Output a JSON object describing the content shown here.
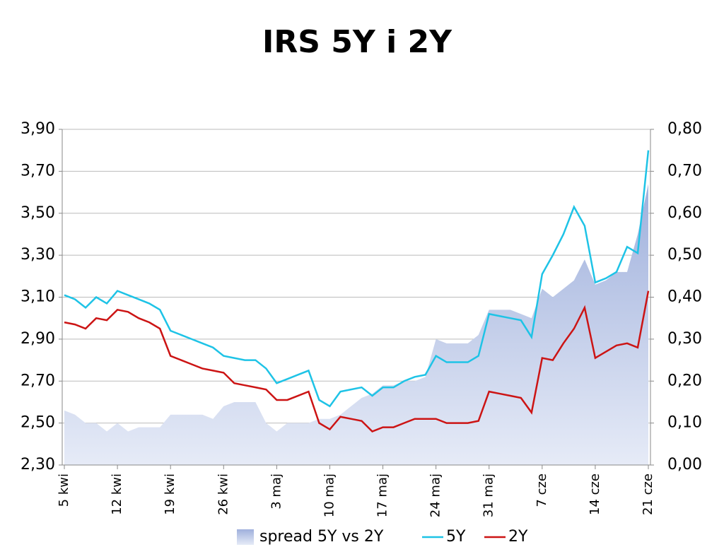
{
  "chart_data": {
    "type": "line",
    "title": "IRS 5Y i 2Y",
    "categories": [
      "5 kwi",
      null,
      null,
      null,
      null,
      "12 kwi",
      null,
      null,
      null,
      null,
      "19 kwi",
      null,
      null,
      null,
      null,
      "26 kwi",
      null,
      null,
      null,
      null,
      "3 maj",
      null,
      null,
      null,
      null,
      "10 maj",
      null,
      null,
      null,
      null,
      "17 maj",
      null,
      null,
      null,
      null,
      "24 maj",
      null,
      null,
      null,
      null,
      "31 maj",
      null,
      null,
      null,
      null,
      "7 cze",
      null,
      null,
      null,
      null,
      "14 cze",
      null,
      null,
      null,
      null,
      "21 cze"
    ],
    "series": [
      {
        "name": "spread 5Y vs 2Y",
        "type": "area",
        "axis": "y2",
        "color": "#aab8e0",
        "values": [
          0.13,
          0.12,
          0.1,
          0.1,
          0.08,
          0.1,
          0.08,
          0.09,
          0.09,
          0.09,
          0.12,
          0.12,
          0.12,
          0.12,
          0.11,
          0.14,
          0.15,
          0.15,
          0.15,
          0.1,
          0.08,
          0.1,
          0.1,
          0.1,
          0.11,
          0.11,
          0.12,
          0.14,
          0.16,
          0.17,
          0.19,
          0.19,
          0.2,
          0.2,
          0.21,
          0.3,
          0.29,
          0.29,
          0.29,
          0.31,
          0.37,
          0.37,
          0.37,
          0.36,
          0.35,
          0.42,
          0.4,
          0.42,
          0.44,
          0.49,
          0.43,
          0.44,
          0.46,
          0.46,
          0.55,
          0.67
        ]
      },
      {
        "name": "5Y",
        "color": "#1ec3e6",
        "values": [
          3.11,
          3.09,
          3.05,
          3.1,
          3.07,
          3.13,
          3.11,
          3.09,
          3.07,
          3.04,
          2.94,
          2.92,
          2.9,
          2.88,
          2.86,
          2.82,
          2.81,
          2.8,
          2.8,
          2.76,
          2.69,
          2.71,
          2.73,
          2.75,
          2.61,
          2.58,
          2.65,
          2.66,
          2.67,
          2.63,
          2.67,
          2.67,
          2.7,
          2.72,
          2.73,
          2.82,
          2.79,
          2.79,
          2.79,
          2.82,
          3.02,
          3.01,
          3.0,
          2.99,
          2.91,
          3.21,
          3.3,
          3.4,
          3.53,
          3.44,
          3.17,
          3.19,
          3.22,
          3.34,
          3.31,
          3.8
        ]
      },
      {
        "name": "2Y",
        "color": "#cc1414",
        "values": [
          2.98,
          2.97,
          2.95,
          3.0,
          2.99,
          3.04,
          3.03,
          3.0,
          2.98,
          2.95,
          2.82,
          2.8,
          2.78,
          2.76,
          2.75,
          2.74,
          2.69,
          2.68,
          2.67,
          2.66,
          2.61,
          2.61,
          2.63,
          2.65,
          2.5,
          2.47,
          2.53,
          2.52,
          2.51,
          2.46,
          2.48,
          2.48,
          2.5,
          2.52,
          2.52,
          2.52,
          2.5,
          2.5,
          2.5,
          2.51,
          2.65,
          2.64,
          2.63,
          2.62,
          2.55,
          2.81,
          2.8,
          2.88,
          2.95,
          3.05,
          2.81,
          2.84,
          2.87,
          2.88,
          2.86,
          3.13
        ]
      }
    ],
    "ylim": [
      2.3,
      3.9
    ],
    "yticks": [
      {
        "value": 2.3,
        "label": "2,30"
      },
      {
        "value": 2.5,
        "label": "2,50"
      },
      {
        "value": 2.7,
        "label": "2,70"
      },
      {
        "value": 2.9,
        "label": "2,90"
      },
      {
        "value": 3.1,
        "label": "3,10"
      },
      {
        "value": 3.3,
        "label": "3,30"
      },
      {
        "value": 3.5,
        "label": "3,50"
      },
      {
        "value": 3.7,
        "label": "3,70"
      },
      {
        "value": 3.9,
        "label": "3,90"
      }
    ],
    "y2lim": [
      0,
      0.8
    ],
    "y2ticks": [
      {
        "value": 0,
        "label": "0,00"
      },
      {
        "value": 0.1,
        "label": "0,10"
      },
      {
        "value": 0.2,
        "label": "0,20"
      },
      {
        "value": 0.3,
        "label": "0,30"
      },
      {
        "value": 0.4,
        "label": "0,40"
      },
      {
        "value": 0.5,
        "label": "0,50"
      },
      {
        "value": 0.6,
        "label": "0,60"
      },
      {
        "value": 0.7,
        "label": "0,70"
      },
      {
        "value": 0.8,
        "label": "0,80"
      }
    ],
    "grid": true,
    "legend": "bottom"
  }
}
